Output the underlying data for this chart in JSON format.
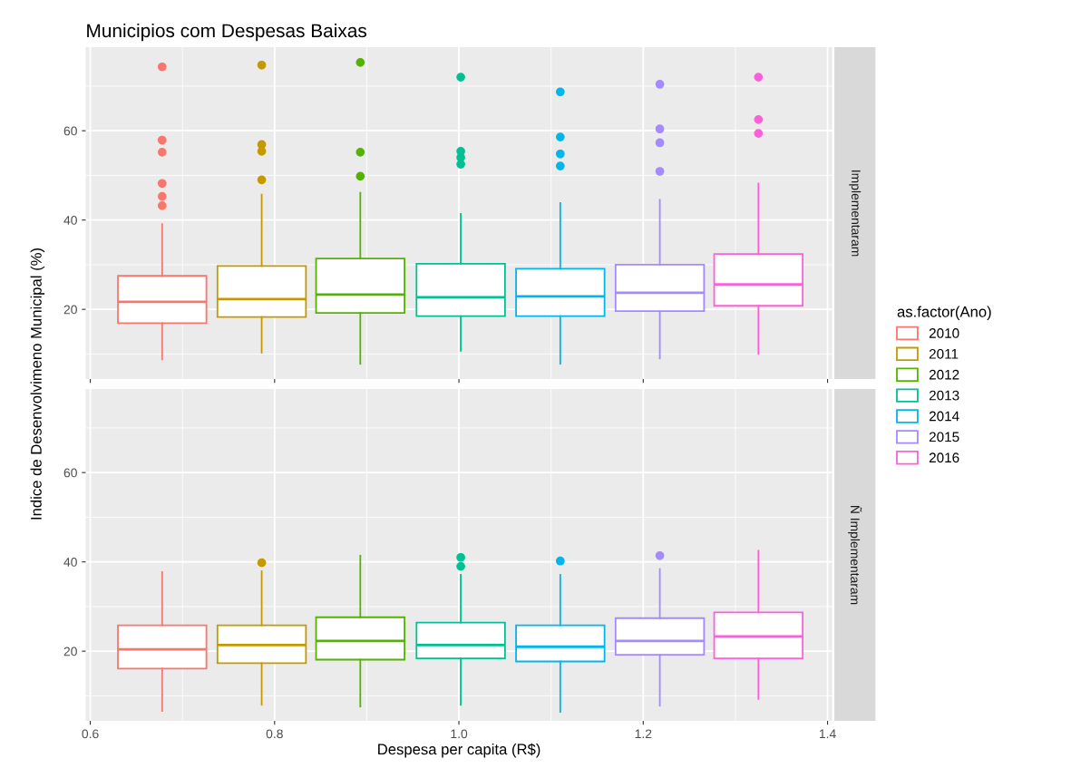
{
  "chart_data": [
    {
      "type": "box",
      "title": "Municipios com Despesas Baixas",
      "y2label": "Implementaram",
      "ylabel": "Indice de Desenvolvimeno Municipal (%)",
      "legend_title": "as.factor(Ano)",
      "legend": "right",
      "grid": true,
      "tick_labels": "y",
      "xlim": [
        0.595,
        1.405
      ],
      "xticks": [
        0.6,
        0.8,
        1.0,
        1.2,
        1.4
      ],
      "ylim": [
        4.4,
        78.7
      ],
      "yticks": [
        20,
        40,
        60
      ],
      "series": [
        {
          "name": "2010",
          "color": "#f8766d",
          "x": [
            0.678
          ],
          "boxes": [
            {
              "low": 8.8,
              "q1": 16.9,
              "median": 21.7,
              "q3": 27.5,
              "high": 39.1,
              "outliers": [
                43.2,
                45.3,
                48.2,
                55.2,
                57.9,
                74.3
              ]
            }
          ]
        },
        {
          "name": "2011",
          "color": "#c49a00",
          "x": [
            0.786
          ],
          "boxes": [
            {
              "low": 10.3,
              "q1": 18.3,
              "median": 22.3,
              "q3": 29.7,
              "high": 45.7,
              "outliers": [
                49.0,
                55.4,
                56.9,
                74.7
              ]
            }
          ]
        },
        {
          "name": "2012",
          "color": "#53b400",
          "x": [
            0.893
          ],
          "boxes": [
            {
              "low": 7.8,
              "q1": 19.2,
              "median": 23.3,
              "q3": 31.4,
              "high": 46.1,
              "outliers": [
                49.8,
                55.2,
                75.3
              ]
            }
          ]
        },
        {
          "name": "2013",
          "color": "#00c094",
          "x": [
            1.002
          ],
          "boxes": [
            {
              "low": 10.7,
              "q1": 18.5,
              "median": 22.7,
              "q3": 30.2,
              "high": 41.4,
              "outliers": [
                52.5,
                54.0,
                55.4,
                72.0
              ]
            }
          ]
        },
        {
          "name": "2014",
          "color": "#00b6eb",
          "x": [
            1.11
          ],
          "boxes": [
            {
              "low": 7.8,
              "q1": 18.5,
              "median": 22.9,
              "q3": 29.1,
              "high": 43.8,
              "outliers": [
                52.1,
                54.8,
                58.6,
                68.7
              ]
            }
          ]
        },
        {
          "name": "2015",
          "color": "#a58aff",
          "x": [
            1.218
          ],
          "boxes": [
            {
              "low": 9.0,
              "q1": 19.6,
              "median": 23.7,
              "q3": 30.0,
              "high": 44.5,
              "outliers": [
                50.9,
                57.3,
                60.4,
                70.4
              ]
            }
          ]
        },
        {
          "name": "2016",
          "color": "#fb61d7",
          "x": [
            1.325
          ],
          "boxes": [
            {
              "low": 10.0,
              "q1": 20.8,
              "median": 25.6,
              "q3": 32.4,
              "high": 48.2,
              "outliers": [
                59.4,
                62.5,
                72.0
              ]
            }
          ]
        }
      ]
    },
    {
      "type": "box",
      "y2label": "Ñ Implementaram",
      "xlabel": "Despesa per capita (R$)",
      "grid": true,
      "xlim": [
        0.595,
        1.405
      ],
      "xticks": [
        {
          "value": 0.6,
          "label": "0.6"
        },
        {
          "value": 0.8,
          "label": "0.8"
        },
        {
          "value": 1.0,
          "label": "1.0"
        },
        {
          "value": 1.2,
          "label": "1.2"
        },
        {
          "value": 1.4,
          "label": "1.4"
        }
      ],
      "ylim": [
        4.4,
        78.7
      ],
      "yticks": [
        20,
        40,
        60
      ],
      "series": [
        {
          "color": "#f8766d",
          "x": [
            0.678
          ],
          "boxes": [
            {
              "low": 6.6,
              "q1": 16.1,
              "median": 20.4,
              "q3": 25.8,
              "high": 37.7
            }
          ]
        },
        {
          "color": "#c49a00",
          "x": [
            0.786
          ],
          "boxes": [
            {
              "low": 8.0,
              "q1": 17.3,
              "median": 21.4,
              "q3": 25.8,
              "high": 37.9,
              "outliers": [
                39.8
              ]
            }
          ]
        },
        {
          "color": "#53b400",
          "x": [
            0.893
          ],
          "boxes": [
            {
              "low": 7.6,
              "q1": 18.1,
              "median": 22.3,
              "q3": 27.6,
              "high": 41.4
            }
          ]
        },
        {
          "color": "#00c094",
          "x": [
            1.002
          ],
          "boxes": [
            {
              "low": 8.0,
              "q1": 18.4,
              "median": 21.4,
              "q3": 26.4,
              "high": 37.1,
              "outliers": [
                39.0,
                41.0
              ]
            }
          ]
        },
        {
          "color": "#00b6eb",
          "x": [
            1.11
          ],
          "boxes": [
            {
              "low": 6.4,
              "q1": 17.7,
              "median": 21.0,
              "q3": 25.8,
              "high": 37.1,
              "outliers": [
                40.2
              ]
            }
          ]
        },
        {
          "color": "#a58aff",
          "x": [
            1.218
          ],
          "boxes": [
            {
              "low": 7.8,
              "q1": 19.2,
              "median": 22.3,
              "q3": 27.4,
              "high": 38.4,
              "outliers": [
                41.4
              ]
            }
          ]
        },
        {
          "color": "#fb61d7",
          "x": [
            1.325
          ],
          "boxes": [
            {
              "low": 9.3,
              "q1": 18.4,
              "median": 23.3,
              "q3": 28.7,
              "high": 42.5
            }
          ]
        }
      ]
    }
  ]
}
